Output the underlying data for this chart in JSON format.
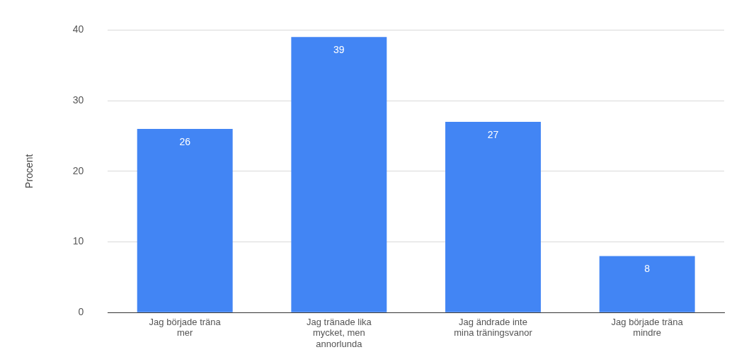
{
  "chart_data": {
    "type": "bar",
    "ylabel": "Procent",
    "categories": [
      "Jag började träna mer",
      "Jag tränade lika mycket, men annorlunda",
      "Jag ändrade inte mina träningsvanor",
      "Jag började träna mindre"
    ],
    "values": [
      26,
      39,
      27,
      8
    ],
    "color": "#4285f4",
    "ylim": [
      0,
      40
    ],
    "yticks": [
      0,
      10,
      20,
      30,
      40
    ],
    "grid": "y",
    "legend": false,
    "data_labels": true
  }
}
